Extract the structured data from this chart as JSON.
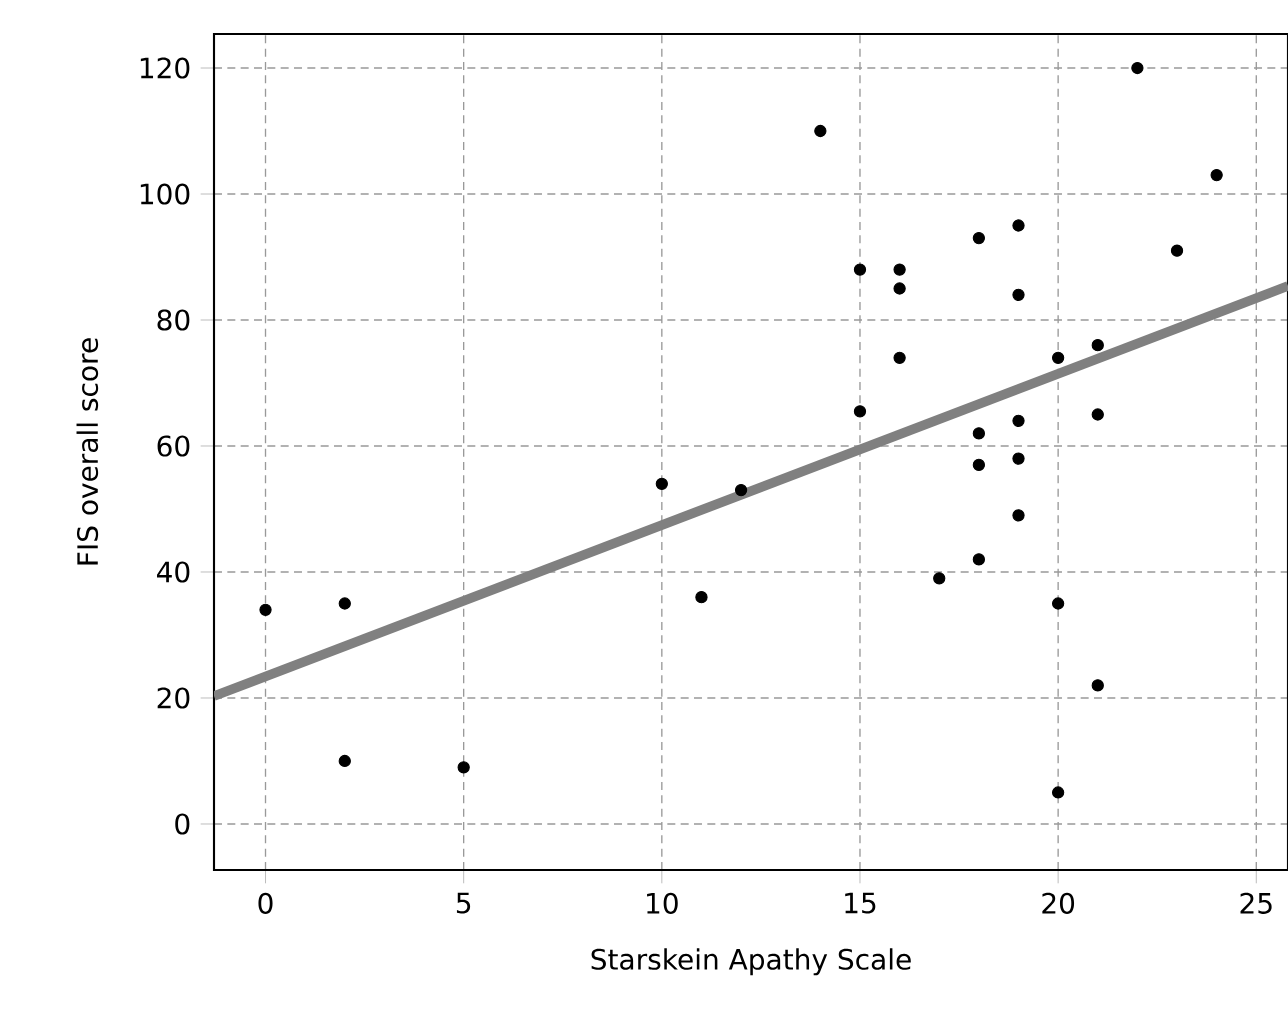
{
  "chart_data": {
    "type": "scatter",
    "xlabel": "Starskein Apathy Scale",
    "ylabel": "FIS overall score",
    "xlim": [
      -1.3,
      25.8
    ],
    "ylim": [
      -7.3,
      125.4
    ],
    "xticks": [
      0,
      5,
      10,
      15,
      20,
      25
    ],
    "yticks": [
      0,
      20,
      40,
      60,
      80,
      100,
      120
    ],
    "grid": true,
    "series": [
      {
        "type": "scatter",
        "color": "#000000",
        "marker": "circle",
        "x": [
          0,
          2,
          2,
          5,
          10,
          11,
          12,
          14,
          15,
          15,
          16,
          16,
          16,
          17,
          18,
          18,
          18,
          18,
          19,
          19,
          19,
          19,
          19,
          20,
          20,
          20,
          21,
          21,
          21,
          22,
          23,
          24
        ],
        "values": [
          34,
          35,
          10,
          9,
          54,
          36,
          53,
          110,
          88,
          65.5,
          88,
          85,
          74,
          39,
          93,
          62,
          57,
          42,
          95,
          84,
          64,
          58,
          49,
          74,
          35,
          5,
          76,
          65,
          22,
          120,
          91,
          103
        ]
      },
      {
        "type": "line",
        "color": "#808080",
        "marker": "none",
        "x": [
          -1.3,
          25.8
        ],
        "values": [
          20.3,
          85.4
        ]
      }
    ]
  }
}
